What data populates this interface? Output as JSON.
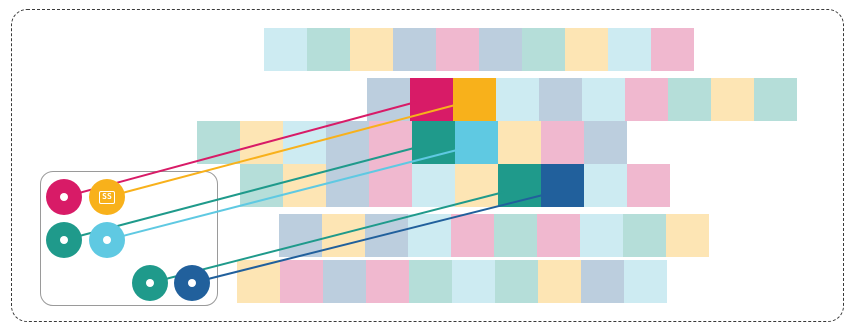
{
  "palette": {
    "light_blue": "#cdebf2",
    "mint": "#b5ded9",
    "cream": "#fde5b4",
    "slate": "#bccede",
    "pink": "#f0b8cf",
    "magenta": "#d81b67",
    "amber": "#f8b11b",
    "teal": "#1f9a8b",
    "cyan": "#5fc9e2",
    "navy": "#21609c",
    "frame": "#3a3a3a",
    "card_border": "#9a9a9a"
  },
  "grid_rows": [
    [
      "light_blue",
      "mint",
      "cream",
      "slate",
      "pink",
      "slate",
      "mint",
      "cream",
      "light_blue",
      "pink"
    ],
    [
      "slate",
      "magenta",
      "amber",
      "light_blue",
      "slate",
      "light_blue",
      "pink",
      "mint",
      "cream",
      "mint"
    ],
    [
      "mint",
      "cream",
      "light_blue",
      "slate",
      "pink",
      "teal",
      "cyan",
      "cream",
      "pink",
      "slate"
    ],
    [
      "mint",
      "cream",
      "slate",
      "pink",
      "light_blue",
      "cream",
      "teal",
      "navy",
      "light_blue",
      "pink"
    ],
    [
      "slate",
      "cream",
      "slate",
      "light_blue",
      "pink",
      "mint",
      "pink",
      "light_blue",
      "mint",
      "cream"
    ],
    [
      "cream",
      "pink",
      "slate",
      "pink",
      "mint",
      "light_blue",
      "mint",
      "cream",
      "slate",
      "light_blue"
    ]
  ],
  "legend_chips": [
    {
      "id": "magenta-chip",
      "color": "magenta",
      "icon": "dot"
    },
    {
      "id": "amber-chip",
      "color": "amber",
      "icon": "card-icon",
      "icon_text": "SS"
    },
    {
      "id": "teal-chip-a",
      "color": "teal",
      "icon": "dot"
    },
    {
      "id": "cyan-chip",
      "color": "cyan",
      "icon": "dot"
    },
    {
      "id": "teal-chip-b",
      "color": "teal",
      "icon": "dot"
    },
    {
      "id": "navy-chip",
      "color": "navy",
      "icon": "dot"
    }
  ],
  "links": [
    {
      "from": "magenta-chip",
      "to_row": 1,
      "to_col": 1,
      "color": "magenta"
    },
    {
      "from": "amber-chip",
      "to_row": 1,
      "to_col": 2,
      "color": "amber"
    },
    {
      "from": "teal-chip-a",
      "to_row": 2,
      "to_col": 5,
      "color": "teal"
    },
    {
      "from": "cyan-chip",
      "to_row": 2,
      "to_col": 6,
      "color": "cyan"
    },
    {
      "from": "teal-chip-b",
      "to_row": 3,
      "to_col": 6,
      "color": "teal"
    },
    {
      "from": "navy-chip",
      "to_row": 3,
      "to_col": 7,
      "color": "navy"
    }
  ]
}
